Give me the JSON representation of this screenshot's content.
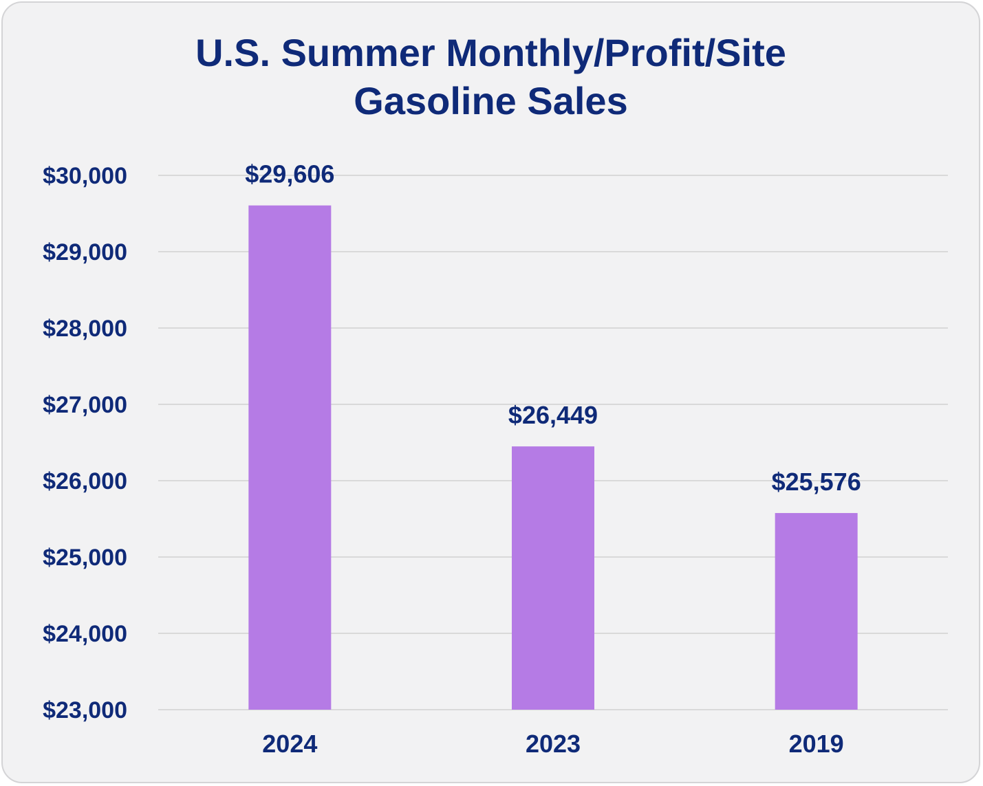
{
  "chart_data": {
    "type": "bar",
    "title": [
      "U.S. Summer Monthly/Profit/Site",
      "Gasoline Sales"
    ],
    "categories": [
      "2024",
      "2023",
      "2019"
    ],
    "values": [
      29606,
      26449,
      25576
    ],
    "data_labels": [
      "$29,606",
      "$26,449",
      "$25,576"
    ],
    "ylim": [
      23000,
      30000
    ],
    "yticks": [
      30000,
      29000,
      28000,
      27000,
      26000,
      25000,
      24000,
      23000
    ],
    "ytick_labels": [
      "$30,000",
      "$29,000",
      "$28,000",
      "$27,000",
      "$26,000",
      "$25,000",
      "$24,000",
      "$23,000"
    ],
    "xlabel": "",
    "ylabel": "",
    "grid": true,
    "legend": "none",
    "bar_color": "#b57be5",
    "text_color": "#0f2a78",
    "grid_color": "#d9d9d9"
  }
}
